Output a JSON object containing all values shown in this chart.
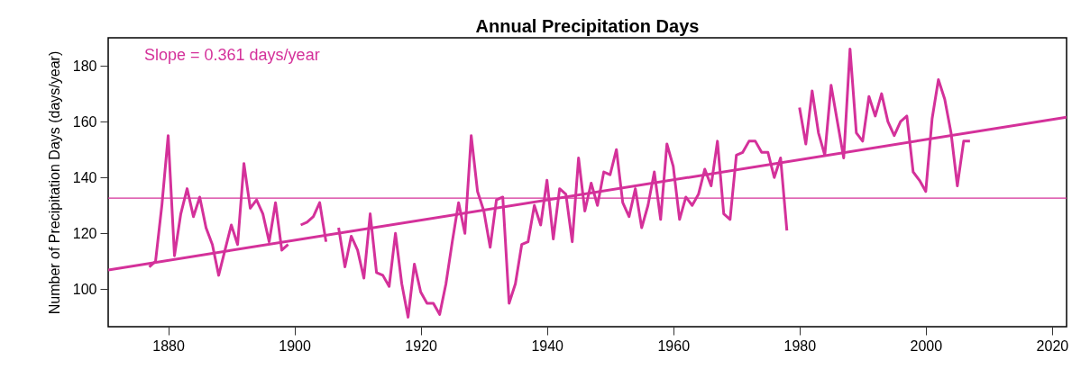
{
  "chart_data": {
    "type": "line",
    "title": "Annual Precipitation Days",
    "ylabel": "Number of Precipitation Days (days/year)",
    "x": [
      1877,
      1878,
      1879,
      1880,
      1881,
      1882,
      1883,
      1884,
      1885,
      1886,
      1887,
      1888,
      1889,
      1890,
      1891,
      1892,
      1893,
      1894,
      1895,
      1896,
      1897,
      1898,
      1899,
      1900,
      1901,
      1902,
      1903,
      1904,
      1905,
      1906,
      1907,
      1908,
      1909,
      1910,
      1911,
      1912,
      1913,
      1914,
      1915,
      1916,
      1917,
      1918,
      1919,
      1920,
      1921,
      1922,
      1923,
      1924,
      1925,
      1926,
      1927,
      1928,
      1929,
      1930,
      1931,
      1932,
      1933,
      1934,
      1935,
      1936,
      1937,
      1938,
      1939,
      1940,
      1941,
      1942,
      1943,
      1944,
      1945,
      1946,
      1947,
      1948,
      1949,
      1950,
      1951,
      1952,
      1953,
      1954,
      1955,
      1956,
      1957,
      1958,
      1959,
      1960,
      1961,
      1962,
      1963,
      1964,
      1965,
      1966,
      1967,
      1968,
      1969,
      1970,
      1971,
      1972,
      1973,
      1974,
      1975,
      1976,
      1977,
      1978,
      1979,
      1980,
      1981,
      1982,
      1983,
      1984,
      1985,
      1986,
      1987,
      1988,
      1989,
      1990,
      1991,
      1992,
      1993,
      1994,
      1995,
      1996,
      1997,
      1998,
      1999,
      2000,
      2001,
      2002,
      2003,
      2004,
      2005,
      2006,
      2007
    ],
    "series": [
      {
        "color": "#d4319a",
        "values": [
          108,
          110,
          130,
          155,
          112,
          127,
          136,
          126,
          133,
          122,
          116,
          105,
          114,
          123,
          116,
          145,
          129,
          132,
          127,
          117,
          131,
          114,
          116,
          null,
          123,
          124,
          126,
          131,
          117,
          null,
          122,
          108,
          119,
          114,
          104,
          127,
          106,
          105,
          101,
          120,
          102,
          90,
          109,
          99,
          95,
          95,
          91,
          102,
          117,
          131,
          120,
          155,
          135,
          128,
          115,
          132,
          133,
          95,
          102,
          116,
          117,
          130,
          123,
          139,
          118,
          136,
          134,
          117,
          147,
          128,
          138,
          130,
          142,
          141,
          150,
          131,
          126,
          136,
          122,
          130,
          142,
          125,
          152,
          144,
          125,
          133,
          130,
          134,
          143,
          137,
          153,
          127,
          125,
          148,
          149,
          153,
          153,
          149,
          149,
          140,
          147,
          121,
          null,
          165,
          152,
          171,
          156,
          148,
          173,
          160,
          147,
          186,
          156,
          153,
          169,
          162,
          170,
          160,
          155,
          160,
          162,
          142,
          139,
          135,
          161,
          175,
          168,
          156,
          137,
          153,
          153
        ]
      },
      {
        "type": "line",
        "color": "#d4319a",
        "x": [
          1870.5,
          2022.3
        ],
        "values": [
          106.9,
          161.6
        ]
      }
    ],
    "ref_lines": [
      {
        "axis": "y",
        "value": 132.6,
        "color": "#d4319a"
      }
    ],
    "annotations": [
      "Slope = 0.361 days/year"
    ],
    "xlim": [
      1870.5,
      2022.3
    ],
    "ylim": [
      86.6,
      190
    ],
    "xticks": [
      1880,
      1900,
      1920,
      1940,
      1960,
      1980,
      2000,
      2020
    ],
    "yticks": [
      100,
      120,
      140,
      160,
      180
    ]
  }
}
